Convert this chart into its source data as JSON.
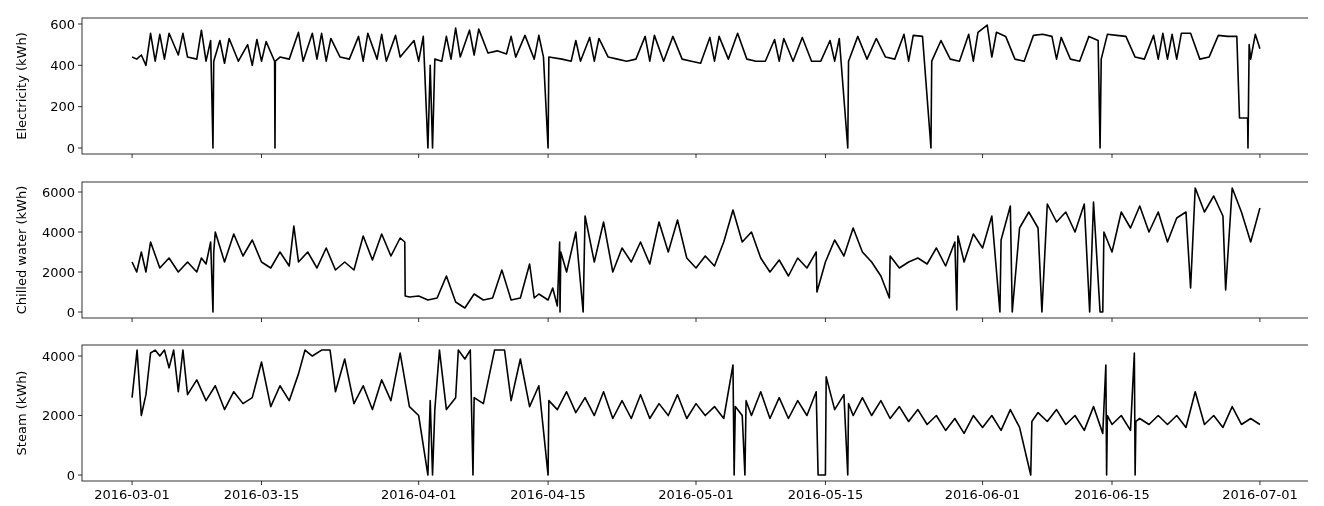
{
  "chart_data": [
    {
      "type": "line",
      "ylabel": "Electricity (kWh)",
      "color": "#000000",
      "xlim": [
        "2016-02-24T14:00",
        "2016-07-06T10:00"
      ],
      "xticks": [
        "2016-03-01",
        "2016-03-15",
        "2016-04-01",
        "2016-04-15",
        "2016-05-01",
        "2016-05-15",
        "2016-06-01",
        "2016-06-15",
        "2016-07-01"
      ],
      "ylim": [
        -29,
        629
      ],
      "yticks": [
        0,
        200,
        400,
        600
      ],
      "tick_labels": "y",
      "x": [
        "2016-03-01T00:00",
        "2016-03-01T12:00",
        "2016-03-02T00:00",
        "2016-03-02T12:00",
        "2016-03-03T00:00",
        "2016-03-03T12:00",
        "2016-03-04T00:00",
        "2016-03-04T12:00",
        "2016-03-05T00:00",
        "2016-03-06T00:00",
        "2016-03-06T12:00",
        "2016-03-07T00:00",
        "2016-03-08T00:00",
        "2016-03-08T12:00",
        "2016-03-09T00:00",
        "2016-03-09T12:00",
        "2016-03-09T18:00",
        "2016-03-09T20:00",
        "2016-03-10T12:00",
        "2016-03-11T00:00",
        "2016-03-11T12:00",
        "2016-03-12T12:00",
        "2016-03-13T12:00",
        "2016-03-14T00:00",
        "2016-03-14T12:00",
        "2016-03-15T00:00",
        "2016-03-15T12:00",
        "2016-03-16T10:00",
        "2016-03-16T11:00",
        "2016-03-16T12:00",
        "2016-03-17T00:00",
        "2016-03-18T00:00",
        "2016-03-19T00:00",
        "2016-03-19T12:00",
        "2016-03-20T12:00",
        "2016-03-21T00:00",
        "2016-03-21T12:00",
        "2016-03-22T00:00",
        "2016-03-22T12:00",
        "2016-03-23T12:00",
        "2016-03-24T12:00",
        "2016-03-25T12:00",
        "2016-03-26T00:00",
        "2016-03-26T12:00",
        "2016-03-27T12:00",
        "2016-03-28T00:00",
        "2016-03-28T12:00",
        "2016-03-29T12:00",
        "2016-03-30T00:00",
        "2016-03-31T12:00",
        "2016-04-01T00:00",
        "2016-04-01T12:00",
        "2016-04-02T00:00",
        "2016-04-02T06:00",
        "2016-04-02T12:00",
        "2016-04-02T18:00",
        "2016-04-03T12:00",
        "2016-04-04T00:00",
        "2016-04-04T12:00",
        "2016-04-05T00:00",
        "2016-04-05T12:00",
        "2016-04-06T12:00",
        "2016-04-07T00:00",
        "2016-04-07T12:00",
        "2016-04-08T12:00",
        "2016-04-09T12:00",
        "2016-04-10T12:00",
        "2016-04-11T00:00",
        "2016-04-11T12:00",
        "2016-04-12T12:00",
        "2016-04-13T12:00",
        "2016-04-14T00:00",
        "2016-04-14T12:00",
        "2016-04-15T00:00",
        "2016-04-15T02:00",
        "2016-04-16T12:00",
        "2016-04-17T12:00",
        "2016-04-18T00:00",
        "2016-04-18T12:00",
        "2016-04-19T12:00",
        "2016-04-20T00:00",
        "2016-04-20T12:00",
        "2016-04-21T12:00",
        "2016-04-22T12:00",
        "2016-04-23T12:00",
        "2016-04-24T12:00",
        "2016-04-25T12:00",
        "2016-04-26T00:00",
        "2016-04-26T12:00",
        "2016-04-27T12:00",
        "2016-04-28T12:00",
        "2016-04-29T12:00",
        "2016-04-30T12:00",
        "2016-05-01T12:00",
        "2016-05-02T12:00",
        "2016-05-03T00:00",
        "2016-05-03T12:00",
        "2016-05-04T12:00",
        "2016-05-05T12:00",
        "2016-05-06T12:00",
        "2016-05-07T12:00",
        "2016-05-08T12:00",
        "2016-05-09T12:00",
        "2016-05-10T00:00",
        "2016-05-10T12:00",
        "2016-05-11T12:00",
        "2016-05-12T12:00",
        "2016-05-13T12:00",
        "2016-05-14T12:00",
        "2016-05-15T12:00",
        "2016-05-16T00:00",
        "2016-05-16T12:00",
        "2016-05-17T10:00",
        "2016-05-17T12:00",
        "2016-05-18T12:00",
        "2016-05-19T12:00",
        "2016-05-20T12:00",
        "2016-05-21T12:00",
        "2016-05-22T12:00",
        "2016-05-23T12:00",
        "2016-05-24T00:00",
        "2016-05-24T12:00",
        "2016-05-25T12:00",
        "2016-05-26T10:00",
        "2016-05-26T12:00",
        "2016-05-27T12:00",
        "2016-05-28T12:00",
        "2016-05-29T12:00",
        "2016-05-30T12:00",
        "2016-05-31T00:00",
        "2016-05-31T12:00",
        "2016-06-01T12:00",
        "2016-06-02T00:00",
        "2016-06-02T12:00",
        "2016-06-03T12:00",
        "2016-06-04T12:00",
        "2016-06-05T12:00",
        "2016-06-06T12:00",
        "2016-06-07T12:00",
        "2016-06-08T12:00",
        "2016-06-09T00:00",
        "2016-06-09T12:00",
        "2016-06-10T12:00",
        "2016-06-11T12:00",
        "2016-06-12T12:00",
        "2016-06-13T12:00",
        "2016-06-13T17:00",
        "2016-06-13T20:00",
        "2016-06-14T12:00",
        "2016-06-15T12:00",
        "2016-06-16T12:00",
        "2016-06-17T12:00",
        "2016-06-18T12:00",
        "2016-06-19T12:00",
        "2016-06-20T00:00",
        "2016-06-20T12:00",
        "2016-06-21T00:00",
        "2016-06-21T12:00",
        "2016-06-22T00:00",
        "2016-06-22T12:00",
        "2016-06-23T12:00",
        "2016-06-24T12:00",
        "2016-06-25T12:00",
        "2016-06-26T12:00",
        "2016-06-27T12:00",
        "2016-06-28T12:00",
        "2016-06-28T19:00",
        "2016-06-29T16:00",
        "2016-06-29T17:00",
        "2016-06-29T20:00",
        "2016-06-30T00:00",
        "2016-06-30T12:00",
        "2016-07-01T00:00"
      ],
      "values": [
        440,
        430,
        450,
        400,
        555,
        420,
        550,
        430,
        555,
        450,
        555,
        440,
        430,
        570,
        420,
        520,
        0,
        420,
        520,
        410,
        530,
        420,
        500,
        400,
        525,
        420,
        515,
        420,
        0,
        420,
        440,
        430,
        560,
        420,
        555,
        430,
        555,
        420,
        530,
        440,
        430,
        540,
        420,
        555,
        430,
        550,
        420,
        545,
        440,
        520,
        420,
        540,
        0,
        400,
        0,
        430,
        420,
        540,
        430,
        580,
        440,
        570,
        450,
        575,
        460,
        470,
        455,
        540,
        440,
        545,
        430,
        545,
        440,
        0,
        440,
        430,
        420,
        520,
        420,
        535,
        420,
        530,
        440,
        430,
        420,
        430,
        540,
        420,
        545,
        420,
        540,
        430,
        420,
        410,
        535,
        420,
        540,
        430,
        555,
        430,
        420,
        420,
        525,
        420,
        530,
        420,
        535,
        420,
        420,
        520,
        420,
        530,
        0,
        420,
        540,
        430,
        530,
        440,
        430,
        550,
        420,
        545,
        540,
        0,
        420,
        520,
        430,
        420,
        550,
        420,
        560,
        595,
        440,
        560,
        540,
        430,
        420,
        545,
        550,
        540,
        430,
        535,
        430,
        420,
        540,
        520,
        0,
        430,
        550,
        545,
        540,
        440,
        430,
        545,
        430,
        555,
        430,
        550,
        430,
        555,
        555,
        430,
        440,
        545,
        540,
        540,
        145,
        145,
        0,
        500,
        430,
        550,
        480
      ]
    },
    {
      "type": "line",
      "ylabel": "Chilled water (kWh)",
      "color": "#000000",
      "xlim": [
        "2016-02-24T14:00",
        "2016-07-06T10:00"
      ],
      "xticks": [
        "2016-03-01",
        "2016-03-15",
        "2016-04-01",
        "2016-04-15",
        "2016-05-01",
        "2016-05-15",
        "2016-06-01",
        "2016-06-15",
        "2016-07-01"
      ],
      "ylim": [
        -300,
        6500
      ],
      "yticks": [
        0,
        2000,
        4000,
        6000
      ],
      "tick_labels": "y",
      "x": [
        "2016-03-01T00:00",
        "2016-03-01T12:00",
        "2016-03-02T00:00",
        "2016-03-02T12:00",
        "2016-03-03T00:00",
        "2016-03-04T00:00",
        "2016-03-05T00:00",
        "2016-03-06T00:00",
        "2016-03-07T00:00",
        "2016-03-08T00:00",
        "2016-03-08T12:00",
        "2016-03-09T00:00",
        "2016-03-09T12:00",
        "2016-03-09T18:00",
        "2016-03-09T20:00",
        "2016-03-10T00:00",
        "2016-03-11T00:00",
        "2016-03-12T00:00",
        "2016-03-13T00:00",
        "2016-03-14T00:00",
        "2016-03-15T00:00",
        "2016-03-16T00:00",
        "2016-03-17T00:00",
        "2016-03-18T00:00",
        "2016-03-18T12:00",
        "2016-03-19T00:00",
        "2016-03-20T00:00",
        "2016-03-21T00:00",
        "2016-03-22T00:00",
        "2016-03-23T00:00",
        "2016-03-24T00:00",
        "2016-03-25T00:00",
        "2016-03-26T00:00",
        "2016-03-27T00:00",
        "2016-03-28T00:00",
        "2016-03-29T00:00",
        "2016-03-30T00:00",
        "2016-03-30T12:00",
        "2016-03-30T13:00",
        "2016-03-31T00:00",
        "2016-04-01T00:00",
        "2016-04-02T00:00",
        "2016-04-03T00:00",
        "2016-04-04T00:00",
        "2016-04-05T00:00",
        "2016-04-06T00:00",
        "2016-04-07T00:00",
        "2016-04-08T00:00",
        "2016-04-09T00:00",
        "2016-04-10T00:00",
        "2016-04-11T00:00",
        "2016-04-12T00:00",
        "2016-04-13T00:00",
        "2016-04-13T12:00",
        "2016-04-14T00:00",
        "2016-04-15T00:00",
        "2016-04-15T12:00",
        "2016-04-16T00:00",
        "2016-04-16T06:00",
        "2016-04-16T07:00",
        "2016-04-16T09:00",
        "2016-04-17T00:00",
        "2016-04-18T00:00",
        "2016-04-18T19:00",
        "2016-04-19T00:00",
        "2016-04-20T00:00",
        "2016-04-21T00:00",
        "2016-04-22T00:00",
        "2016-04-23T00:00",
        "2016-04-24T00:00",
        "2016-04-25T00:00",
        "2016-04-26T00:00",
        "2016-04-27T00:00",
        "2016-04-28T00:00",
        "2016-04-29T00:00",
        "2016-04-30T00:00",
        "2016-05-01T00:00",
        "2016-05-02T00:00",
        "2016-05-03T00:00",
        "2016-05-04T00:00",
        "2016-05-05T00:00",
        "2016-05-06T00:00",
        "2016-05-07T00:00",
        "2016-05-08T00:00",
        "2016-05-09T00:00",
        "2016-05-10T00:00",
        "2016-05-11T00:00",
        "2016-05-12T00:00",
        "2016-05-13T00:00",
        "2016-05-14T00:00",
        "2016-05-14T02:00",
        "2016-05-15T00:00",
        "2016-05-16T00:00",
        "2016-05-17T00:00",
        "2016-05-18T00:00",
        "2016-05-19T00:00",
        "2016-05-20T00:00",
        "2016-05-21T00:00",
        "2016-05-21T22:00",
        "2016-05-22T00:00",
        "2016-05-23T00:00",
        "2016-05-24T00:00",
        "2016-05-25T00:00",
        "2016-05-26T00:00",
        "2016-05-27T00:00",
        "2016-05-28T00:00",
        "2016-05-29T00:00",
        "2016-05-29T05:00",
        "2016-05-29T08:00",
        "2016-05-30T00:00",
        "2016-05-31T00:00",
        "2016-06-01T00:00",
        "2016-06-02T00:00",
        "2016-06-02T21:00",
        "2016-06-03T00:00",
        "2016-06-04T00:00",
        "2016-06-04T05:00",
        "2016-06-05T00:00",
        "2016-06-06T00:00",
        "2016-06-07T00:00",
        "2016-06-07T10:00",
        "2016-06-08T00:00",
        "2016-06-09T00:00",
        "2016-06-10T00:00",
        "2016-06-11T00:00",
        "2016-06-12T00:00",
        "2016-06-12T14:00",
        "2016-06-13T00:00",
        "2016-06-13T17:00",
        "2016-06-14T00:00",
        "2016-06-14T03:00",
        "2016-06-15T00:00",
        "2016-06-16T00:00",
        "2016-06-17T00:00",
        "2016-06-18T00:00",
        "2016-06-19T00:00",
        "2016-06-20T00:00",
        "2016-06-21T00:00",
        "2016-06-22T00:00",
        "2016-06-23T00:00",
        "2016-06-23T12:00",
        "2016-06-24T00:00",
        "2016-06-25T00:00",
        "2016-06-26T00:00",
        "2016-06-27T00:00",
        "2016-06-27T07:00",
        "2016-06-28T00:00",
        "2016-06-29T00:00",
        "2016-06-30T00:00",
        "2016-07-01T00:00"
      ],
      "values": [
        2500,
        2000,
        3000,
        2000,
        3500,
        2200,
        2700,
        2000,
        2500,
        2000,
        2700,
        2400,
        3500,
        0,
        3000,
        4000,
        2500,
        3900,
        2800,
        3600,
        2500,
        2200,
        3000,
        2300,
        4300,
        2500,
        3000,
        2200,
        3200,
        2100,
        2500,
        2100,
        3800,
        2600,
        3900,
        2800,
        3700,
        3500,
        800,
        750,
        800,
        600,
        700,
        1800,
        500,
        200,
        900,
        600,
        700,
        2100,
        600,
        700,
        2400,
        700,
        900,
        600,
        1200,
        300,
        3500,
        0,
        3000,
        2000,
        4000,
        0,
        4800,
        2500,
        4500,
        2000,
        3200,
        2500,
        3500,
        2400,
        4500,
        3000,
        4600,
        2700,
        2200,
        2800,
        2300,
        3500,
        5100,
        3500,
        4000,
        2700,
        2000,
        2600,
        1800,
        2700,
        2200,
        3000,
        1000,
        2500,
        3600,
        2800,
        4200,
        3000,
        2500,
        1800,
        700,
        2800,
        2200,
        2500,
        2700,
        2400,
        3200,
        2300,
        3500,
        100,
        3800,
        2500,
        3900,
        3200,
        4800,
        0,
        3600,
        5300,
        0,
        4200,
        5000,
        4200,
        0,
        5400,
        4500,
        5000,
        4000,
        5400,
        0,
        5500,
        0,
        0,
        4000,
        3000,
        5000,
        4200,
        5300,
        4000,
        5000,
        3500,
        4700,
        5000,
        1200,
        6200,
        5000,
        5800,
        4800,
        1100,
        6200,
        5000,
        3500,
        5200
      ]
    },
    {
      "type": "line",
      "ylabel": "Steam (kWh)",
      "color": "#000000",
      "xlim": [
        "2016-02-24T14:00",
        "2016-07-06T10:00"
      ],
      "xticks": [
        "2016-03-01",
        "2016-03-15",
        "2016-04-01",
        "2016-04-15",
        "2016-05-01",
        "2016-05-15",
        "2016-06-01",
        "2016-06-15",
        "2016-07-01"
      ],
      "ylim": [
        -200,
        4370
      ],
      "yticks": [
        0,
        2000,
        4000
      ],
      "x": [
        "2016-03-01T00:00",
        "2016-03-01T13:00",
        "2016-03-02T00:00",
        "2016-03-02T12:00",
        "2016-03-03T00:00",
        "2016-03-03T12:00",
        "2016-03-04T00:00",
        "2016-03-04T12:00",
        "2016-03-05T00:00",
        "2016-03-05T12:00",
        "2016-03-06T00:00",
        "2016-03-06T12:00",
        "2016-03-07T00:00",
        "2016-03-08T00:00",
        "2016-03-09T00:00",
        "2016-03-10T00:00",
        "2016-03-11T00:00",
        "2016-03-12T00:00",
        "2016-03-13T00:00",
        "2016-03-14T00:00",
        "2016-03-15T00:00",
        "2016-03-16T00:00",
        "2016-03-17T00:00",
        "2016-03-18T00:00",
        "2016-03-19T00:00",
        "2016-03-19T17:00",
        "2016-03-20T12:00",
        "2016-03-21T12:00",
        "2016-03-22T10:00",
        "2016-03-23T00:00",
        "2016-03-24T00:00",
        "2016-03-25T00:00",
        "2016-03-26T00:00",
        "2016-03-27T00:00",
        "2016-03-28T00:00",
        "2016-03-29T00:00",
        "2016-03-30T00:00",
        "2016-03-31T00:00",
        "2016-04-01T00:00",
        "2016-04-02T00:00",
        "2016-04-02T06:00",
        "2016-04-02T12:00",
        "2016-04-02T18:00",
        "2016-04-03T06:00",
        "2016-04-04T00:00",
        "2016-04-05T00:00",
        "2016-04-05T07:00",
        "2016-04-06T00:00",
        "2016-04-06T14:00",
        "2016-04-06T21:00",
        "2016-04-07T00:00",
        "2016-04-08T00:00",
        "2016-04-09T05:00",
        "2016-04-10T07:00",
        "2016-04-11T00:00",
        "2016-04-12T00:00",
        "2016-04-13T00:00",
        "2016-04-14T00:00",
        "2016-04-15T00:00",
        "2016-04-15T02:00",
        "2016-04-16T00:00",
        "2016-04-17T00:00",
        "2016-04-18T00:00",
        "2016-04-19T00:00",
        "2016-04-20T00:00",
        "2016-04-21T00:00",
        "2016-04-22T00:00",
        "2016-04-23T00:00",
        "2016-04-24T00:00",
        "2016-04-25T00:00",
        "2016-04-26T00:00",
        "2016-04-27T00:00",
        "2016-04-28T00:00",
        "2016-04-29T00:00",
        "2016-04-30T00:00",
        "2016-05-01T00:00",
        "2016-05-02T00:00",
        "2016-05-03T00:00",
        "2016-05-04T00:00",
        "2016-05-05T00:00",
        "2016-05-05T03:00",
        "2016-05-05T06:00",
        "2016-05-06T00:00",
        "2016-05-06T07:00",
        "2016-05-06T10:00",
        "2016-05-07T00:00",
        "2016-05-08T00:00",
        "2016-05-09T00:00",
        "2016-05-10T00:00",
        "2016-05-11T00:00",
        "2016-05-12T00:00",
        "2016-05-13T00:00",
        "2016-05-14T00:00",
        "2016-05-14T05:00",
        "2016-05-15T00:00",
        "2016-05-15T02:00",
        "2016-05-16T00:00",
        "2016-05-17T00:00",
        "2016-05-17T10:00",
        "2016-05-17T12:00",
        "2016-05-18T00:00",
        "2016-05-19T00:00",
        "2016-05-20T00:00",
        "2016-05-21T00:00",
        "2016-05-22T00:00",
        "2016-05-23T00:00",
        "2016-05-24T00:00",
        "2016-05-25T00:00",
        "2016-05-26T00:00",
        "2016-05-27T00:00",
        "2016-05-28T00:00",
        "2016-05-29T00:00",
        "2016-05-30T00:00",
        "2016-05-31T00:00",
        "2016-06-01T00:00",
        "2016-06-02T00:00",
        "2016-06-03T00:00",
        "2016-06-04T00:00",
        "2016-06-05T00:00",
        "2016-06-06T05:00",
        "2016-06-06T08:00",
        "2016-06-07T00:00",
        "2016-06-08T00:00",
        "2016-06-09T00:00",
        "2016-06-10T00:00",
        "2016-06-11T00:00",
        "2016-06-12T00:00",
        "2016-06-13T00:00",
        "2016-06-14T00:00",
        "2016-06-14T08:00",
        "2016-06-14T10:00",
        "2016-06-14T12:00",
        "2016-06-15T00:00",
        "2016-06-16T00:00",
        "2016-06-17T00:00",
        "2016-06-17T10:00",
        "2016-06-17T12:00",
        "2016-06-17T14:00",
        "2016-06-18T00:00",
        "2016-06-19T00:00",
        "2016-06-20T00:00",
        "2016-06-21T00:00",
        "2016-06-22T00:00",
        "2016-06-23T00:00",
        "2016-06-24T00:00",
        "2016-06-25T00:00",
        "2016-06-26T00:00",
        "2016-06-27T00:00",
        "2016-06-28T00:00",
        "2016-06-29T00:00",
        "2016-06-30T00:00",
        "2016-07-01T00:00"
      ],
      "values": [
        2600,
        4200,
        2000,
        2700,
        4100,
        4200,
        4000,
        4200,
        3600,
        4200,
        2800,
        4200,
        2700,
        3200,
        2500,
        3000,
        2200,
        2800,
        2400,
        2600,
        3800,
        2300,
        3000,
        2500,
        3400,
        4200,
        4000,
        4200,
        4200,
        2800,
        3900,
        2400,
        3000,
        2200,
        3200,
        2500,
        4100,
        2300,
        2000,
        0,
        2500,
        0,
        2200,
        4200,
        2200,
        2600,
        4200,
        3900,
        4200,
        0,
        2600,
        2400,
        4200,
        4200,
        2500,
        3900,
        2300,
        3000,
        0,
        2500,
        2200,
        2800,
        2100,
        2600,
        2000,
        2800,
        1900,
        2500,
        1900,
        2700,
        1900,
        2400,
        2000,
        2700,
        1900,
        2400,
        2000,
        2300,
        1900,
        3700,
        0,
        2300,
        2000,
        0,
        2500,
        2000,
        2800,
        1900,
        2600,
        1900,
        2500,
        2000,
        2800,
        0,
        0,
        3300,
        2200,
        2700,
        0,
        2400,
        2000,
        2600,
        2000,
        2500,
        1900,
        2300,
        1800,
        2200,
        1700,
        2000,
        1500,
        1900,
        1400,
        2000,
        1600,
        2000,
        1500,
        2200,
        1600,
        0,
        1800,
        2100,
        1800,
        2200,
        1700,
        2000,
        1500,
        2300,
        1400,
        3700,
        0,
        2000,
        1700,
        2000,
        1500,
        4100,
        0,
        1800,
        1900,
        1700,
        2000,
        1700,
        2000,
        1600,
        2800,
        1700,
        2000,
        1600,
        2300,
        1700,
        1900,
        1700
      ]
    }
  ]
}
